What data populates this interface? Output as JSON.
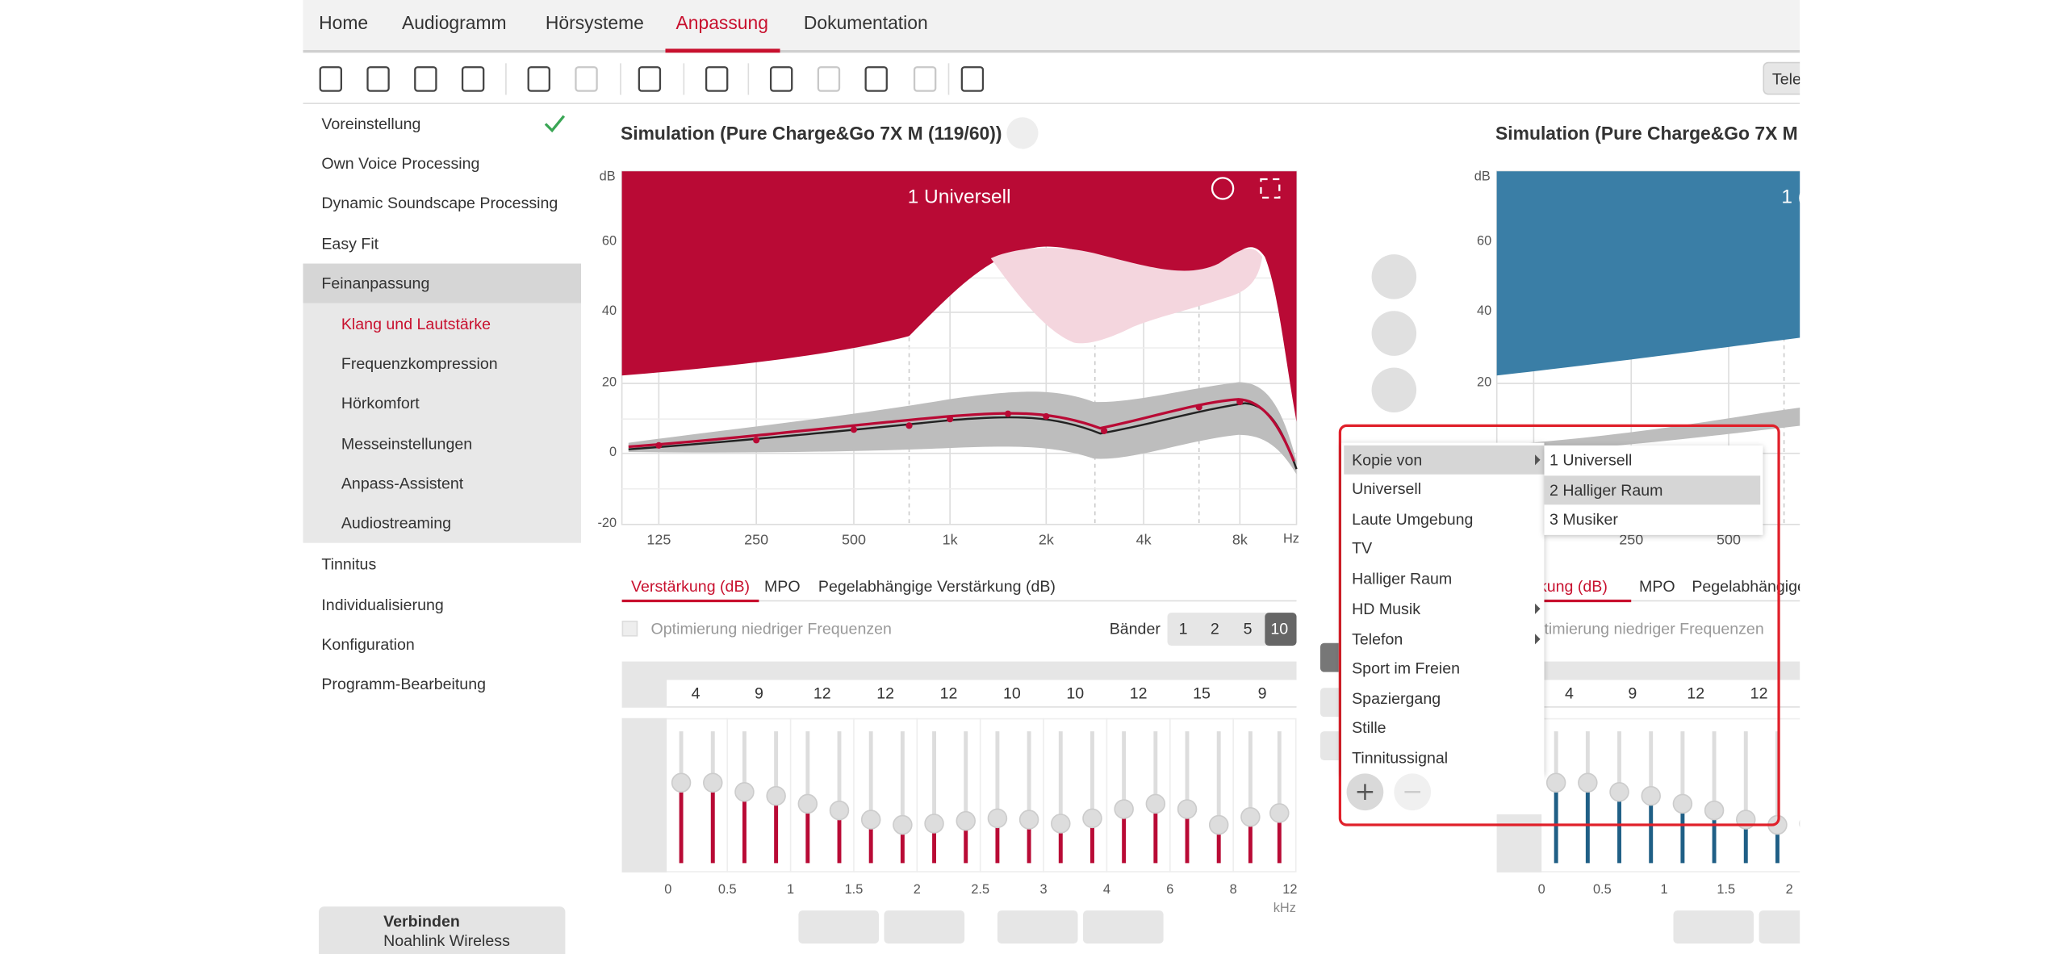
{
  "nav": [
    "Home",
    "Audiogramm",
    "Hörsysteme",
    "Anpassung",
    "Dokumentation"
  ],
  "toolbar_button": "Tele",
  "sidebar": {
    "items": [
      "Voreinstellung",
      "Own Voice Processing",
      "Dynamic Soundscape Processing",
      "Easy Fit",
      "Feinanpassung"
    ],
    "sub_items": [
      "Klang und Lautstärke",
      "Frequenzkompression",
      "Hörkomfort",
      "Messeinstellungen",
      "Anpass-Assistent",
      "Audiostreaming"
    ],
    "more_items": [
      "Tinnitus",
      "Individualisierung",
      "Konfiguration",
      "Programm-Bearbeitung"
    ]
  },
  "connect": {
    "title": "Verbinden",
    "subtitle": "Noahlink Wireless"
  },
  "left_panel": {
    "title": "Simulation (Pure Charge&Go 7X M (119/60))",
    "program": "1 Universell",
    "y_unit": "dB",
    "y_ticks": [
      60,
      40,
      20,
      0,
      -20
    ],
    "x_ticks": [
      "125",
      "250",
      "500",
      "1k",
      "2k",
      "4k",
      "8k"
    ],
    "x_unit": "Hz",
    "tabs": [
      "Verstärkung (dB)",
      "MPO",
      "Pegelabhängige Verstärkung (dB)"
    ],
    "checkbox": "Optimierung niedriger Frequenzen",
    "bands_label": "Bänder",
    "bands": [
      1,
      2,
      5,
      10
    ],
    "gains": [
      4,
      9,
      12,
      12,
      12,
      10,
      10,
      12,
      15,
      9
    ],
    "slider_ticks": [
      0,
      0.5,
      1,
      1.5,
      2,
      2.5,
      3,
      4,
      6,
      8,
      12
    ],
    "slider_unit": "kHz"
  },
  "right_panel": {
    "title": "Simulation (Pure Charge&Go 7X M (",
    "program": "1 (",
    "y_unit": "dB",
    "y_ticks": [
      60,
      40,
      20
    ],
    "x_ticks": [
      "250",
      "500"
    ],
    "tabs": [
      "rkung (dB)",
      "MPO",
      "Pegelabhängige"
    ],
    "checkbox": "timierung niedriger Frequenzen",
    "gains": [
      4,
      9,
      12,
      12
    ],
    "slider_ticks": [
      0,
      0.5,
      1,
      1.5,
      2
    ]
  },
  "context_menu": {
    "items": [
      "Kopie von",
      "Universell",
      "Laute Umgebung",
      "TV",
      "Halliger Raum",
      "HD Musik",
      "Telefon",
      "Sport im Freien",
      "Spaziergang",
      "Stille",
      "Tinnitussignal"
    ],
    "submenu": [
      "1 Universell",
      "2 Halliger Raum",
      "3 Musiker"
    ]
  }
}
